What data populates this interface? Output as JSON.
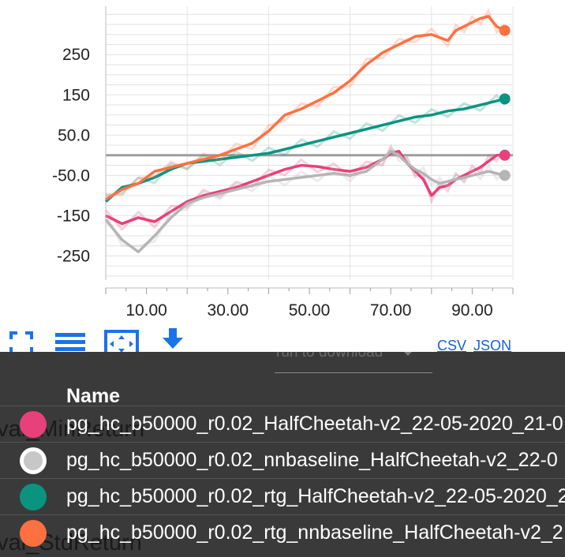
{
  "chart_data": {
    "type": "line",
    "x_ticks": [
      "10.00",
      "30.00",
      "50.00",
      "70.00",
      "90.00"
    ],
    "y_ticks": [
      "250",
      "150",
      "50.0",
      "-50.0",
      "-150",
      "-250"
    ],
    "xlim": [
      0,
      100
    ],
    "ylim": [
      -310,
      370
    ],
    "grid": true,
    "series": [
      {
        "name": "pg_hc_b50000_r0.02_HalfCheetah-v2_22-05-2020_21-0",
        "color": "#e8407a",
        "x": [
          0,
          4,
          8,
          12,
          16,
          20,
          24,
          28,
          32,
          36,
          40,
          44,
          48,
          52,
          56,
          60,
          64,
          68,
          70,
          72,
          74,
          76,
          78,
          80,
          82,
          84,
          86,
          88,
          90,
          92,
          94,
          96,
          98
        ],
        "y": [
          -150,
          -170,
          -155,
          -165,
          -140,
          -115,
          -100,
          -90,
          -80,
          -65,
          -50,
          -35,
          -25,
          -28,
          -35,
          -40,
          -30,
          -10,
          5,
          10,
          -20,
          -40,
          -60,
          -100,
          -80,
          -75,
          -60,
          -50,
          -40,
          -30,
          -15,
          0,
          0
        ]
      },
      {
        "name": "pg_hc_b50000_r0.02_nnbaseline_HalfCheetah-v2_22-0",
        "color": "#b5b5b5",
        "x": [
          0,
          4,
          8,
          12,
          16,
          20,
          24,
          28,
          32,
          36,
          40,
          44,
          48,
          52,
          56,
          60,
          64,
          68,
          70,
          72,
          74,
          76,
          78,
          80,
          82,
          84,
          86,
          88,
          90,
          92,
          94,
          96,
          98
        ],
        "y": [
          -160,
          -210,
          -240,
          -200,
          -155,
          -120,
          -105,
          -95,
          -85,
          -75,
          -65,
          -60,
          -55,
          -50,
          -45,
          -50,
          -40,
          -10,
          10,
          0,
          -20,
          -35,
          -45,
          -60,
          -70,
          -65,
          -60,
          -55,
          -50,
          -45,
          -40,
          -45,
          -50
        ]
      },
      {
        "name": "pg_hc_b50000_r0.02_rtg_HalfCheetah-v2_22-05-2020_2",
        "color": "#0a9480",
        "x": [
          0,
          4,
          8,
          12,
          16,
          20,
          24,
          28,
          32,
          36,
          40,
          44,
          48,
          52,
          56,
          60,
          64,
          68,
          72,
          76,
          80,
          84,
          88,
          92,
          96,
          98
        ],
        "y": [
          -115,
          -80,
          -70,
          -55,
          -35,
          -20,
          -15,
          -10,
          -5,
          0,
          5,
          15,
          25,
          35,
          45,
          55,
          65,
          75,
          85,
          95,
          100,
          110,
          115,
          125,
          135,
          140
        ]
      },
      {
        "name": "pg_hc_b50000_r0.02_rtg_nnbaseline_HalfCheetah-v2_2",
        "color": "#ff7040",
        "x": [
          0,
          4,
          8,
          12,
          16,
          20,
          24,
          28,
          32,
          36,
          40,
          44,
          48,
          52,
          56,
          60,
          64,
          68,
          72,
          76,
          80,
          84,
          86,
          88,
          90,
          92,
          94,
          96,
          98
        ],
        "y": [
          -110,
          -85,
          -70,
          -40,
          -30,
          -20,
          -10,
          0,
          15,
          30,
          60,
          100,
          115,
          135,
          155,
          185,
          225,
          255,
          275,
          295,
          300,
          285,
          310,
          320,
          330,
          340,
          345,
          320,
          310
        ]
      }
    ]
  },
  "toolbar": {
    "fullscreen_icon": "fullscreen-icon",
    "list_icon": "list-icon",
    "fit_icon": "fit-domain-icon",
    "download_icon": "download-icon",
    "dropdown_placeholder": "run to download",
    "csv_label": "CSV",
    "json_label": "JSON"
  },
  "legend": {
    "header": "Name",
    "ghost_labels": [
      "eval_MinReturn",
      "eval_StdReturn"
    ],
    "rows": [
      {
        "label": "pg_hc_b50000_r0.02_HalfCheetah-v2_22-05-2020_21-0",
        "color": "#e8407a",
        "hollow": false
      },
      {
        "label": "pg_hc_b50000_r0.02_nnbaseline_HalfCheetah-v2_22-0",
        "color": "#c7c7c7",
        "hollow": true
      },
      {
        "label": "pg_hc_b50000_r0.02_rtg_HalfCheetah-v2_22-05-2020_2",
        "color": "#0a9480",
        "hollow": false
      },
      {
        "label": "pg_hc_b50000_r0.02_rtg_nnbaseline_HalfCheetah-v2_2",
        "color": "#ff7040",
        "hollow": false
      }
    ]
  }
}
